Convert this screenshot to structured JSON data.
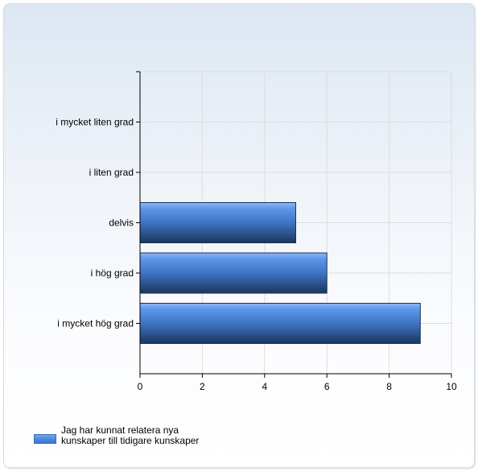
{
  "chart_data": {
    "type": "bar",
    "orientation": "horizontal",
    "categories": [
      "i mycket liten grad",
      "i liten grad",
      "delvis",
      "i hög grad",
      "i mycket hög grad"
    ],
    "series": [
      {
        "name": "Jag har kunnat relatera nya kunskaper till tidigare kunskaper",
        "values": [
          0,
          0,
          5,
          6,
          9
        ]
      }
    ],
    "x_ticks": [
      "0",
      "2",
      "4",
      "6",
      "8",
      "10"
    ],
    "xlim": [
      0,
      10
    ],
    "grid": true,
    "legend_position": "bottom-left",
    "colors": {
      "bar_top": "#6ea3ef",
      "bar_bottom": "#1e3f6e",
      "grid": "#dddddd",
      "axis": "#000000"
    }
  },
  "legend": {
    "label_line1": "Jag har kunnat relatera nya",
    "label_line2": "kunskaper till tidigare kunskaper"
  }
}
